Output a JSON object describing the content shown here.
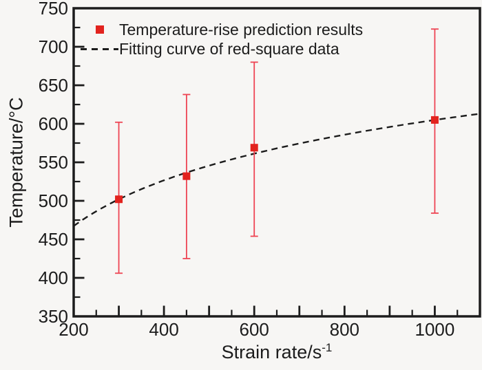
{
  "colors": {
    "foreground": "#1c1c1c",
    "background": "#f7f6f4",
    "marker_red": "#e2231e",
    "errorbar_red": "#ee4453",
    "curve_black": "#1c1c1c"
  },
  "chart_data": {
    "type": "scatter",
    "title": "",
    "xlabel": "Strain rate/s⁻¹",
    "xlabel_base": "Strain rate/s",
    "xlabel_sup": "-1",
    "ylabel": "Temperature/°C",
    "xlim": [
      200,
      1100
    ],
    "ylim": [
      350,
      750
    ],
    "grid": false,
    "x_major_tick_step": 100,
    "x_minor_tick_step": 50,
    "x_tick_labels": [
      200,
      400,
      600,
      800,
      1000
    ],
    "y_major_tick_step": 50,
    "y_minor_tick_step": 25,
    "y_tick_labels": [
      350,
      400,
      450,
      500,
      550,
      600,
      650,
      700,
      750
    ],
    "legend_position": "top-left",
    "series": [
      {
        "name": "Temperature-rise prediction results",
        "type": "scatter",
        "marker": "square",
        "marker_size": 11,
        "color": "#e2231e",
        "errorbar_color": "#ee4453",
        "x": [
          300,
          450,
          600,
          1000
        ],
        "y": [
          502,
          532,
          569,
          605
        ],
        "error_low": [
          406,
          425,
          454,
          484
        ],
        "error_high": [
          602,
          638,
          680,
          723
        ]
      },
      {
        "name": "Fitting curve of red-square data",
        "type": "line",
        "line_style": "dashed",
        "color": "#1c1c1c",
        "fit": {
          "form": "T = a + b*ln(x)",
          "a": 14.3,
          "b": 85.5,
          "x_start": 200,
          "x_end": 1100
        }
      }
    ]
  }
}
